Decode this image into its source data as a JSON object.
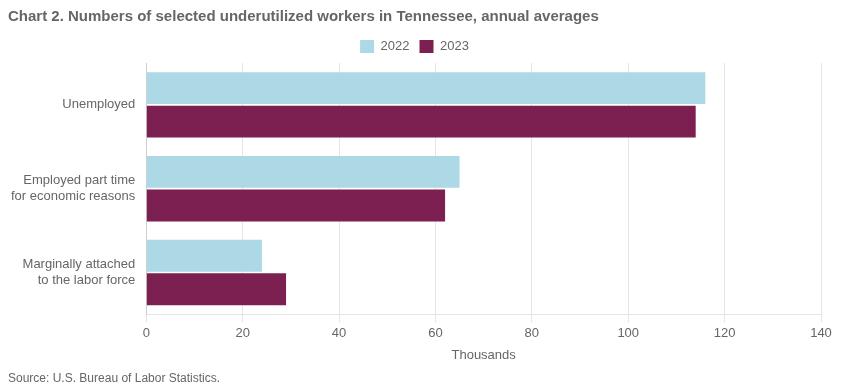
{
  "chart_data": {
    "type": "bar",
    "orientation": "horizontal",
    "title": "Chart 2. Numbers of selected underutilized workers in Tennessee, annual averages",
    "categories": [
      "Unemployed",
      "Employed part time\nfor economic reasons",
      "Marginally attached\nto the labor force"
    ],
    "series": [
      {
        "name": "2022",
        "color": "#add8e6",
        "values": [
          116,
          65,
          24
        ]
      },
      {
        "name": "2023",
        "color": "#7b2051",
        "values": [
          114,
          62,
          29
        ]
      }
    ],
    "xlabel": "Thousands",
    "xlim": [
      0,
      140
    ],
    "xticks": [
      0,
      20,
      40,
      60,
      80,
      100,
      120,
      140
    ],
    "grid": "x",
    "legend": "top",
    "source": "Source: U.S. Bureau of Labor Statistics."
  }
}
